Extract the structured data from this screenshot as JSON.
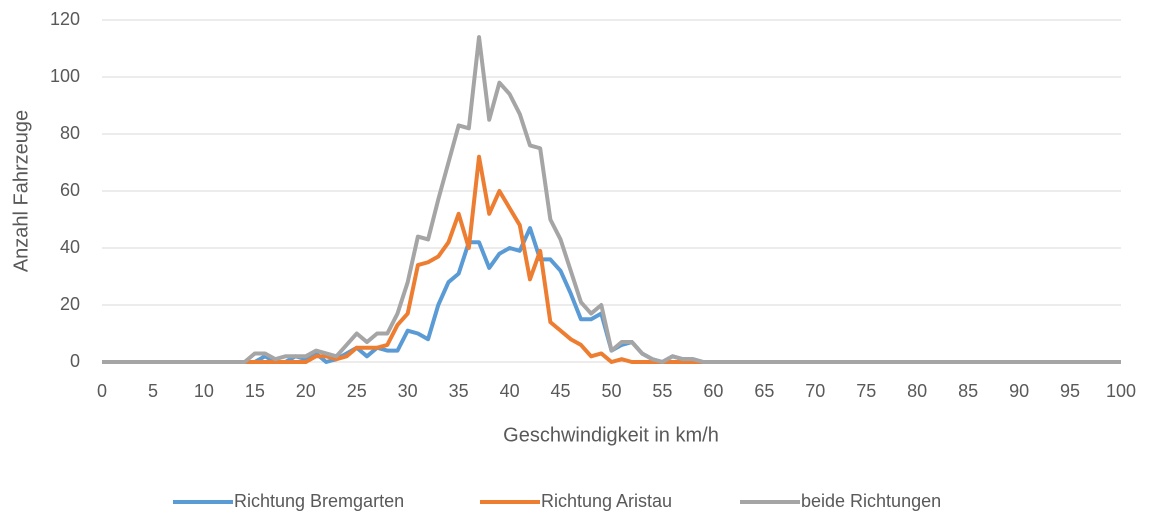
{
  "chart_data": {
    "type": "line",
    "xlabel": "Geschwindigkeit in km/h",
    "ylabel": "Anzahl Fahrzeuge",
    "x": [
      0,
      1,
      2,
      3,
      4,
      5,
      6,
      7,
      8,
      9,
      10,
      11,
      12,
      13,
      14,
      15,
      16,
      17,
      18,
      19,
      20,
      21,
      22,
      23,
      24,
      25,
      26,
      27,
      28,
      29,
      30,
      31,
      32,
      33,
      34,
      35,
      36,
      37,
      38,
      39,
      40,
      41,
      42,
      43,
      44,
      45,
      46,
      47,
      48,
      49,
      50,
      51,
      52,
      53,
      54,
      55,
      56,
      57,
      58,
      59,
      60,
      61,
      62,
      63,
      64,
      65,
      66,
      67,
      68,
      69,
      70,
      71,
      72,
      73,
      74,
      75,
      76,
      77,
      78,
      79,
      80,
      81,
      82,
      83,
      84,
      85,
      86,
      87,
      88,
      89,
      90,
      91,
      92,
      93,
      94,
      95,
      96,
      97,
      98,
      99,
      100
    ],
    "series": [
      {
        "name": "Richtung Bremgarten",
        "color": "#5b9bd5",
        "values": [
          0,
          0,
          0,
          0,
          0,
          0,
          0,
          0,
          0,
          0,
          0,
          0,
          0,
          0,
          0,
          0,
          2,
          0,
          0,
          2,
          1,
          3,
          0,
          1,
          3,
          5,
          2,
          5,
          4,
          4,
          11,
          10,
          8,
          20,
          28,
          31,
          42,
          42,
          33,
          38,
          40,
          39,
          47,
          36,
          36,
          32,
          24,
          15,
          15,
          17,
          4,
          6,
          7,
          3,
          1,
          0,
          2,
          1,
          1,
          0,
          0,
          0,
          0,
          0,
          0,
          0,
          0,
          0,
          0,
          0,
          0,
          0,
          0,
          0,
          0,
          0,
          0,
          0,
          0,
          0,
          0,
          0,
          0,
          0,
          0,
          0,
          0,
          0,
          0,
          0,
          0,
          0,
          0,
          0,
          0,
          0,
          0,
          0,
          0,
          0,
          0
        ]
      },
      {
        "name": "Richtung Aristau",
        "color": "#ed7d31",
        "values": [
          0,
          0,
          0,
          0,
          0,
          0,
          0,
          0,
          0,
          0,
          0,
          0,
          0,
          0,
          0,
          0,
          0,
          0,
          0,
          0,
          0,
          2,
          2,
          1,
          2,
          5,
          5,
          5,
          6,
          13,
          17,
          34,
          35,
          37,
          42,
          52,
          40,
          72,
          52,
          60,
          54,
          48,
          29,
          39,
          14,
          11,
          8,
          6,
          2,
          3,
          0,
          1,
          0,
          0,
          0,
          0,
          0,
          0,
          0,
          0,
          0,
          0,
          0,
          0,
          0,
          0,
          0,
          0,
          0,
          0,
          0,
          0,
          0,
          0,
          0,
          0,
          0,
          0,
          0,
          0,
          0,
          0,
          0,
          0,
          0,
          0,
          0,
          0,
          0,
          0,
          0,
          0,
          0,
          0,
          0,
          0,
          0,
          0,
          0,
          0,
          0
        ]
      },
      {
        "name": "beide Richtungen",
        "color": "#a5a5a5",
        "values": [
          0,
          0,
          0,
          0,
          0,
          0,
          0,
          0,
          0,
          0,
          0,
          0,
          0,
          0,
          0,
          3,
          3,
          1,
          2,
          2,
          2,
          4,
          3,
          2,
          6,
          10,
          7,
          10,
          10,
          17,
          28,
          44,
          43,
          57,
          70,
          83,
          82,
          114,
          85,
          98,
          94,
          87,
          76,
          75,
          50,
          43,
          32,
          21,
          17,
          20,
          4,
          7,
          7,
          3,
          1,
          0,
          2,
          1,
          1,
          0,
          0,
          0,
          0,
          0,
          0,
          0,
          0,
          0,
          0,
          0,
          0,
          0,
          0,
          0,
          0,
          0,
          0,
          0,
          0,
          0,
          0,
          0,
          0,
          0,
          0,
          0,
          0,
          0,
          0,
          0,
          0,
          0,
          0,
          0,
          0,
          0,
          0,
          0,
          0,
          0,
          0
        ]
      }
    ],
    "xlim": [
      0,
      100
    ],
    "xticks": [
      0,
      5,
      10,
      15,
      20,
      25,
      30,
      35,
      40,
      45,
      50,
      55,
      60,
      65,
      70,
      75,
      80,
      85,
      90,
      95,
      100
    ],
    "ylim": [
      0,
      120
    ],
    "yticks": [
      0,
      20,
      40,
      60,
      80,
      100,
      120
    ],
    "grid": true,
    "legend": "bottom"
  }
}
